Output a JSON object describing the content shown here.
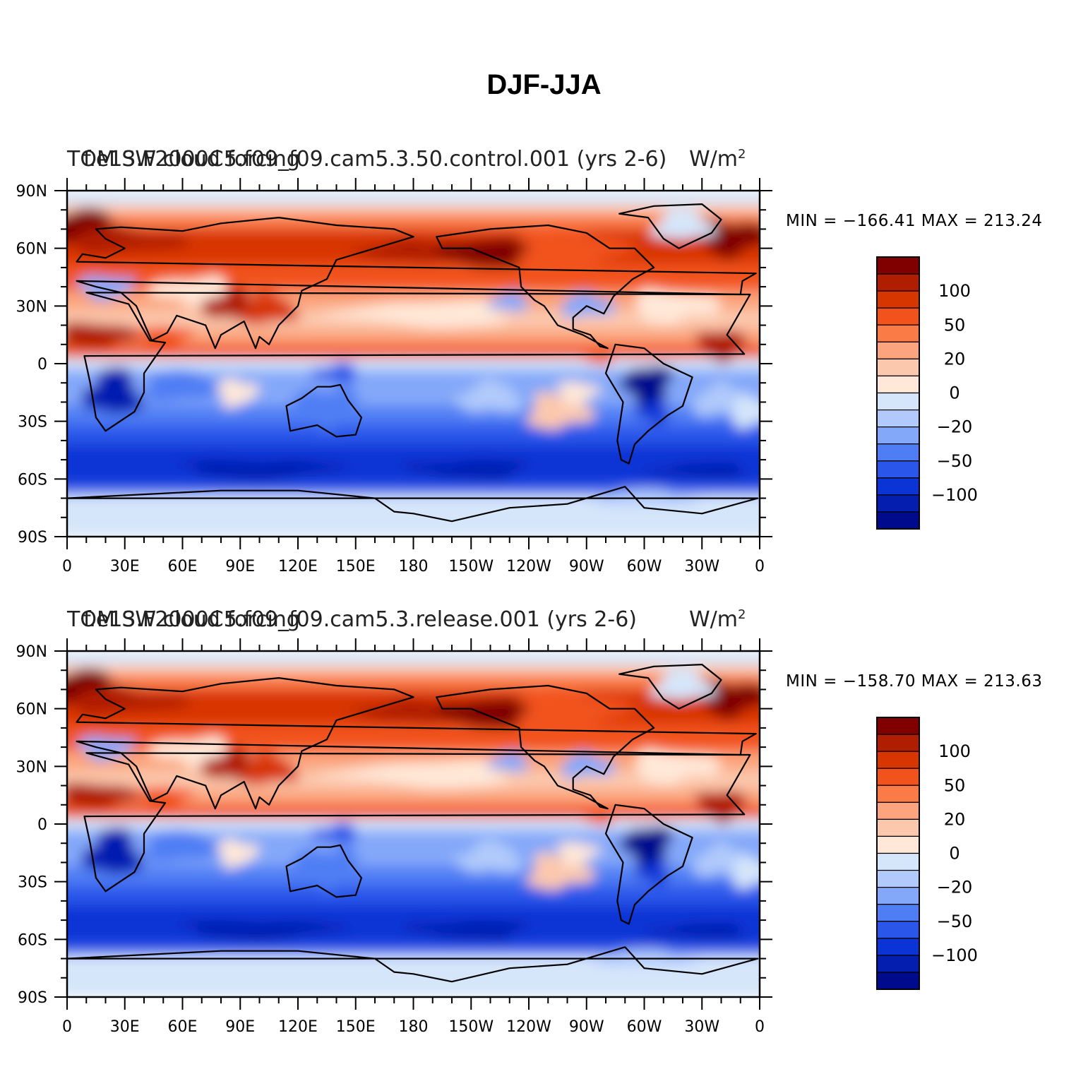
{
  "title": "DJF-JJA",
  "panels": [
    {
      "id": "top",
      "left_string": "TOM SW cloud forcing",
      "center_string": "f.e13.F2000C5.f09_f09.cam5.3.50.control.001 (yrs 2-6)",
      "right_string": "W/m",
      "right_sup": "2",
      "min_label": "MIN = −166.41",
      "max_label": "MAX = 213.24"
    },
    {
      "id": "bottom",
      "left_string": "TOM SW cloud forcing",
      "center_string": "f.e13.F2000C5.f09_f09.cam5.3.release.001 (yrs 2-6)",
      "right_string": "W/m",
      "right_sup": "2",
      "min_label": "MIN = −158.70",
      "max_label": "MAX = 213.63"
    }
  ],
  "map": {
    "lat_labels": [
      "90N",
      "60N",
      "30N",
      "0",
      "30S",
      "60S",
      "90S"
    ],
    "lon_labels": [
      "0",
      "30E",
      "60E",
      "90E",
      "120E",
      "150E",
      "180",
      "150W",
      "120W",
      "90W",
      "60W",
      "30W",
      "0"
    ]
  },
  "colorbar": {
    "labels": [
      "100",
      "50",
      "20",
      "0",
      "−20",
      "−50",
      "−100"
    ],
    "colors": [
      "#800000",
      "#b01e00",
      "#d83600",
      "#f2521b",
      "#fa7b46",
      "#fba47d",
      "#fcc8ad",
      "#ffe8d8",
      "#d5e6fa",
      "#b1cafb",
      "#84a8f9",
      "#4f7ef4",
      "#2a57ea",
      "#0a34d6",
      "#041fb0",
      "#000a8c"
    ]
  }
}
